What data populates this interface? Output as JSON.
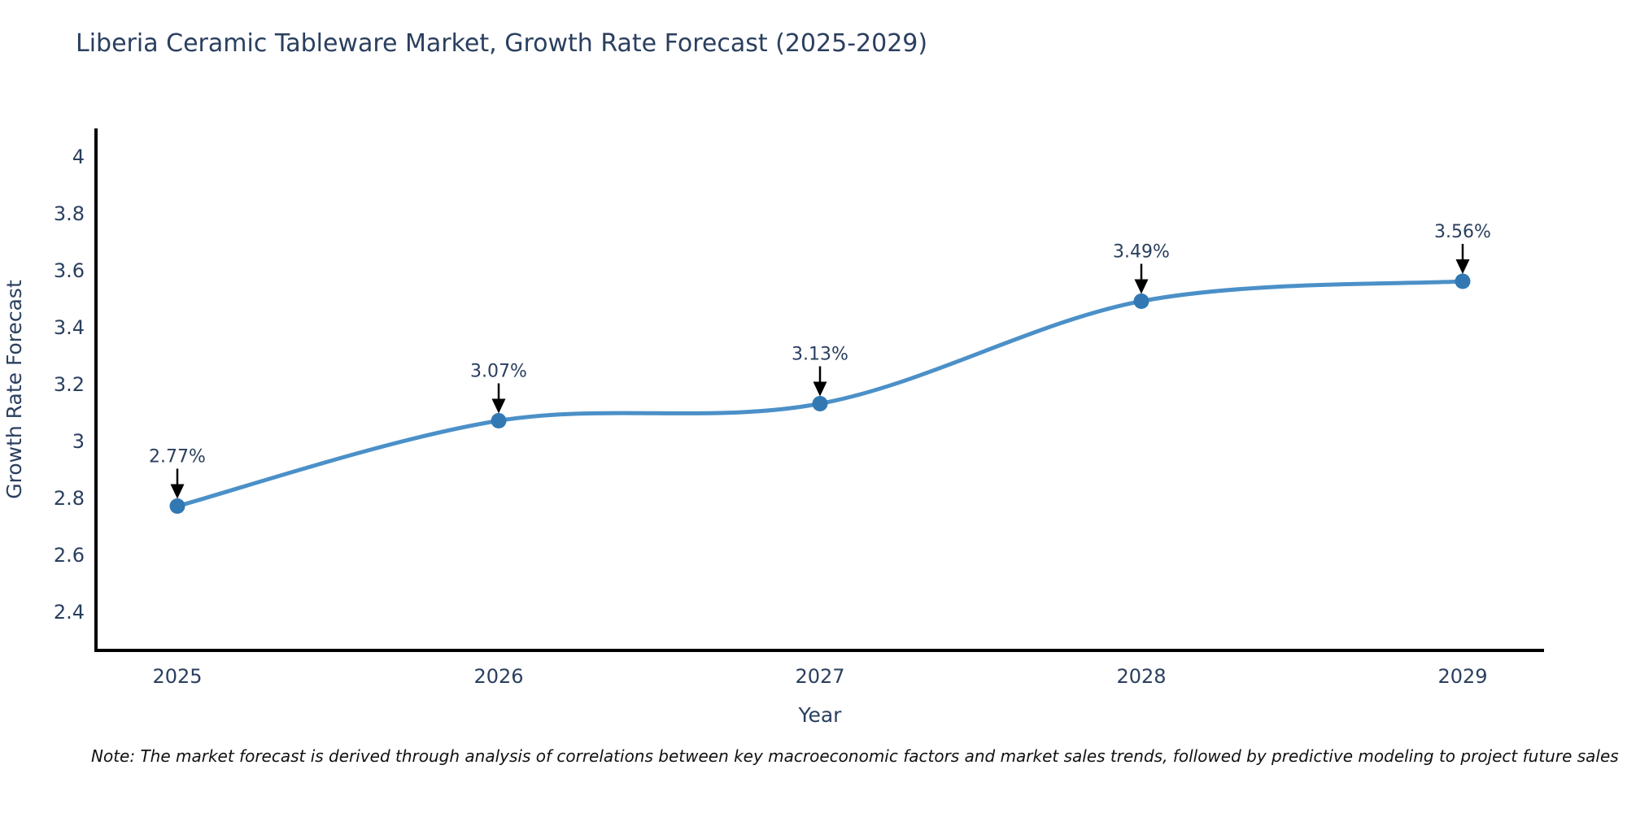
{
  "title": "Liberia Ceramic Tableware Market, Growth Rate Forecast (2025-2029)",
  "footnote": "Note: The market forecast is derived through analysis of correlations between key macroeconomic factors and market sales trends, followed by predictive modeling to project future sales",
  "chart_data": {
    "type": "line",
    "title": "Liberia Ceramic Tableware Market, Growth Rate Forecast (2025-2029)",
    "xlabel": "Year",
    "ylabel": "Growth Rate Forecast",
    "categories": [
      "2025",
      "2026",
      "2027",
      "2028",
      "2029"
    ],
    "values": [
      2.77,
      3.07,
      3.13,
      3.49,
      3.56
    ],
    "point_labels": [
      "2.77%",
      "3.07%",
      "3.13%",
      "3.49%",
      "3.56%"
    ],
    "line_shape": "spline",
    "grid": false,
    "legend": "none",
    "ylim": [
      2.26,
      4.09
    ],
    "yticks": [
      2.4,
      2.6,
      2.8,
      3,
      3.2,
      3.4,
      3.6,
      3.8,
      4
    ],
    "ytick_labels": [
      "2.4",
      "2.6",
      "2.8",
      "3",
      "3.2",
      "3.4",
      "3.6",
      "3.8",
      "4"
    ],
    "colors": {
      "line": "#4b90c8",
      "marker": "#3279b3",
      "axis": "#000000",
      "text": "#2a3f5f",
      "annotation_text": "#2a3f5f",
      "annotation_arrow": "#000000"
    }
  }
}
